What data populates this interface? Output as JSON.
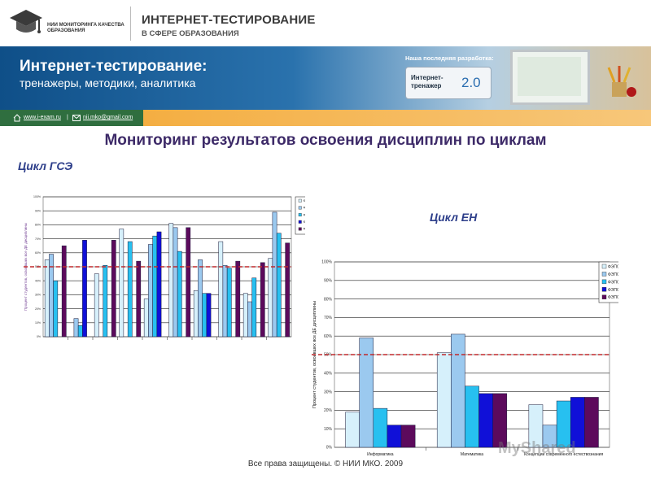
{
  "header": {
    "logo_text": "НИИ МОНИТОРИНГА КАЧЕСТВА ОБРАЗОВАНИЯ",
    "title": "ИНТЕРНЕТ-ТЕСТИРОВАНИЕ",
    "subtitle": "В СФЕРЕ ОБРАЗОВАНИЯ"
  },
  "banner": {
    "title": "Интернет-тестирование:",
    "subtitle": "тренажеры, методики, аналитика",
    "dev_label": "Наша последняя разработка:",
    "trainer_label": "Интернет-тренажер",
    "trainer_version": "2.0"
  },
  "links": {
    "site": "www.i-exam.ru",
    "separator": "|",
    "email": "nii.mko@gmail.com"
  },
  "page": {
    "title": "Мониторинг результатов освоения дисциплин по циклам",
    "footer": "Все права защищены. © НИИ МКО. 2009",
    "watermark": "MyShared"
  },
  "colors": {
    "s1": "#d6f0fb",
    "s2": "#9bc9ef",
    "s3": "#27c0f0",
    "s4": "#1010d8",
    "s5": "#5c0a5c",
    "threshold": "#c0282c"
  },
  "chart_data": [
    {
      "type": "bar",
      "label": "Цикл ГСЭ",
      "ylabel": "Процент студентов, освоивших все ДЕ дисциплины",
      "ylim": [
        0,
        100
      ],
      "yticks": [
        "0%",
        "10%",
        "20%",
        "30%",
        "40%",
        "50%",
        "60%",
        "70%",
        "80%",
        "90%",
        "100%"
      ],
      "threshold": 50,
      "legend_position": "top-right",
      "categories": [
        "",
        "",
        "",
        "",
        "",
        "",
        "",
        "",
        "",
        ""
      ],
      "series": [
        {
          "name": "ФЭПО-6",
          "values": [
            55,
            0,
            45,
            77,
            27,
            81,
            33,
            68,
            31,
            56
          ]
        },
        {
          "name": "ФЭПО-7",
          "values": [
            59,
            13,
            0,
            0,
            66,
            78,
            55,
            51,
            25,
            89
          ]
        },
        {
          "name": "ФЭПО-8",
          "values": [
            40,
            8,
            51,
            68,
            72,
            61,
            31,
            49,
            42,
            74
          ]
        },
        {
          "name": "ФЭПО-9",
          "values": [
            0,
            69,
            0,
            0,
            75,
            0,
            31,
            0,
            0,
            0
          ]
        },
        {
          "name": "ФЭПО-10",
          "values": [
            65,
            0,
            69,
            54,
            0,
            78,
            0,
            54,
            53,
            67
          ]
        }
      ]
    },
    {
      "type": "bar",
      "label": "Цикл ЕН",
      "ylabel": "Процент студентов, освоивших все ДЕ дисциплины",
      "ylim": [
        0,
        100
      ],
      "yticks": [
        "0%",
        "10%",
        "20%",
        "30%",
        "40%",
        "50%",
        "60%",
        "70%",
        "80%",
        "90%",
        "100%"
      ],
      "threshold": 50,
      "legend_position": "top-right",
      "categories": [
        "Информатика",
        "Математика",
        "Концепции современного естествознания"
      ],
      "series": [
        {
          "name": "ФЭПО-6",
          "values": [
            19,
            51,
            23
          ]
        },
        {
          "name": "ФЭПО-7",
          "values": [
            59,
            61,
            12
          ]
        },
        {
          "name": "ФЭПО-8",
          "values": [
            21,
            33,
            25
          ]
        },
        {
          "name": "ФЭПО-9",
          "values": [
            12,
            29,
            27
          ]
        },
        {
          "name": "ФЭПО-10",
          "values": [
            12,
            29,
            27
          ]
        }
      ]
    }
  ]
}
